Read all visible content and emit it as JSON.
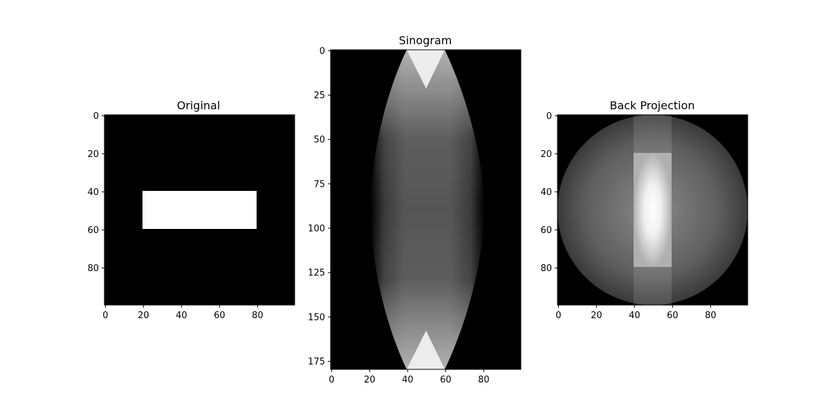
{
  "chart_data": [
    {
      "type": "heatmap",
      "title": "Original",
      "colormap": "gray",
      "x_ticks": [
        0,
        20,
        40,
        60,
        80
      ],
      "y_ticks": [
        0,
        20,
        40,
        60,
        80
      ],
      "x_range": [
        0,
        100
      ],
      "y_range": [
        0,
        100
      ],
      "description_values": {
        "background": 0,
        "rectangle": {
          "x": [
            20,
            80
          ],
          "y": [
            40,
            60
          ],
          "value": 1
        }
      }
    },
    {
      "type": "heatmap",
      "title": "Sinogram",
      "colormap": "gray",
      "x_ticks": [
        0,
        20,
        40,
        60,
        80
      ],
      "y_ticks": [
        0,
        25,
        50,
        75,
        100,
        125,
        150,
        175
      ],
      "x_range": [
        0,
        100
      ],
      "y_range": [
        0,
        180
      ]
    },
    {
      "type": "heatmap",
      "title": "Back Projection",
      "colormap": "gray",
      "x_ticks": [
        0,
        20,
        40,
        60,
        80
      ],
      "y_ticks": [
        0,
        20,
        40,
        60,
        80
      ],
      "x_range": [
        0,
        100
      ],
      "y_range": [
        0,
        100
      ]
    }
  ]
}
